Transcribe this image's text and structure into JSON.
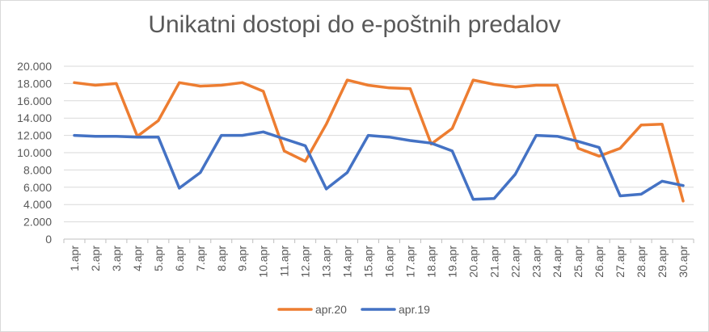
{
  "chart_data": {
    "type": "line",
    "title": "Unikatni dostopi do e-poštnih predalov",
    "xlabel": "",
    "ylabel": "",
    "ylim": [
      0,
      20000
    ],
    "yticks": [
      0,
      2000,
      4000,
      6000,
      8000,
      10000,
      12000,
      14000,
      16000,
      18000,
      20000
    ],
    "ytick_labels": [
      "0",
      "2.000",
      "4.000",
      "6.000",
      "8.000",
      "10.000",
      "12.000",
      "14.000",
      "16.000",
      "18.000",
      "20.000"
    ],
    "grid": true,
    "legend_position": "bottom",
    "categories": [
      "1.apr",
      "2.apr",
      "3.apr",
      "4.apr",
      "5.apr",
      "6.apr",
      "7.apr",
      "8.apr",
      "9.apr",
      "10.apr",
      "11.apr",
      "12.apr",
      "13.apr",
      "14.apr",
      "15.apr",
      "16.apr",
      "17.apr",
      "18.apr",
      "19.apr",
      "20.apr",
      "21.apr",
      "22.apr",
      "23.apr",
      "24.apr",
      "25.apr",
      "26.apr",
      "27.apr",
      "28.apr",
      "29.apr",
      "30.apr"
    ],
    "series": [
      {
        "name": "apr.20",
        "color": "#ed7d31",
        "values": [
          18100,
          17800,
          18000,
          11900,
          13700,
          18100,
          17700,
          17800,
          18100,
          17100,
          10200,
          9000,
          13300,
          18400,
          17800,
          17500,
          17400,
          11000,
          12800,
          18400,
          17900,
          17600,
          17800,
          17800,
          10500,
          9600,
          10500,
          13200,
          13300,
          4400
        ]
      },
      {
        "name": "apr.19",
        "color": "#4472c4",
        "values": [
          12000,
          11900,
          11900,
          11800,
          11800,
          5900,
          7700,
          12000,
          12000,
          12400,
          11600,
          10800,
          5800,
          7700,
          12000,
          11800,
          11400,
          11100,
          10200,
          4600,
          4700,
          7500,
          12000,
          11900,
          11300,
          10600,
          5000,
          5200,
          6700,
          6200
        ]
      }
    ]
  }
}
